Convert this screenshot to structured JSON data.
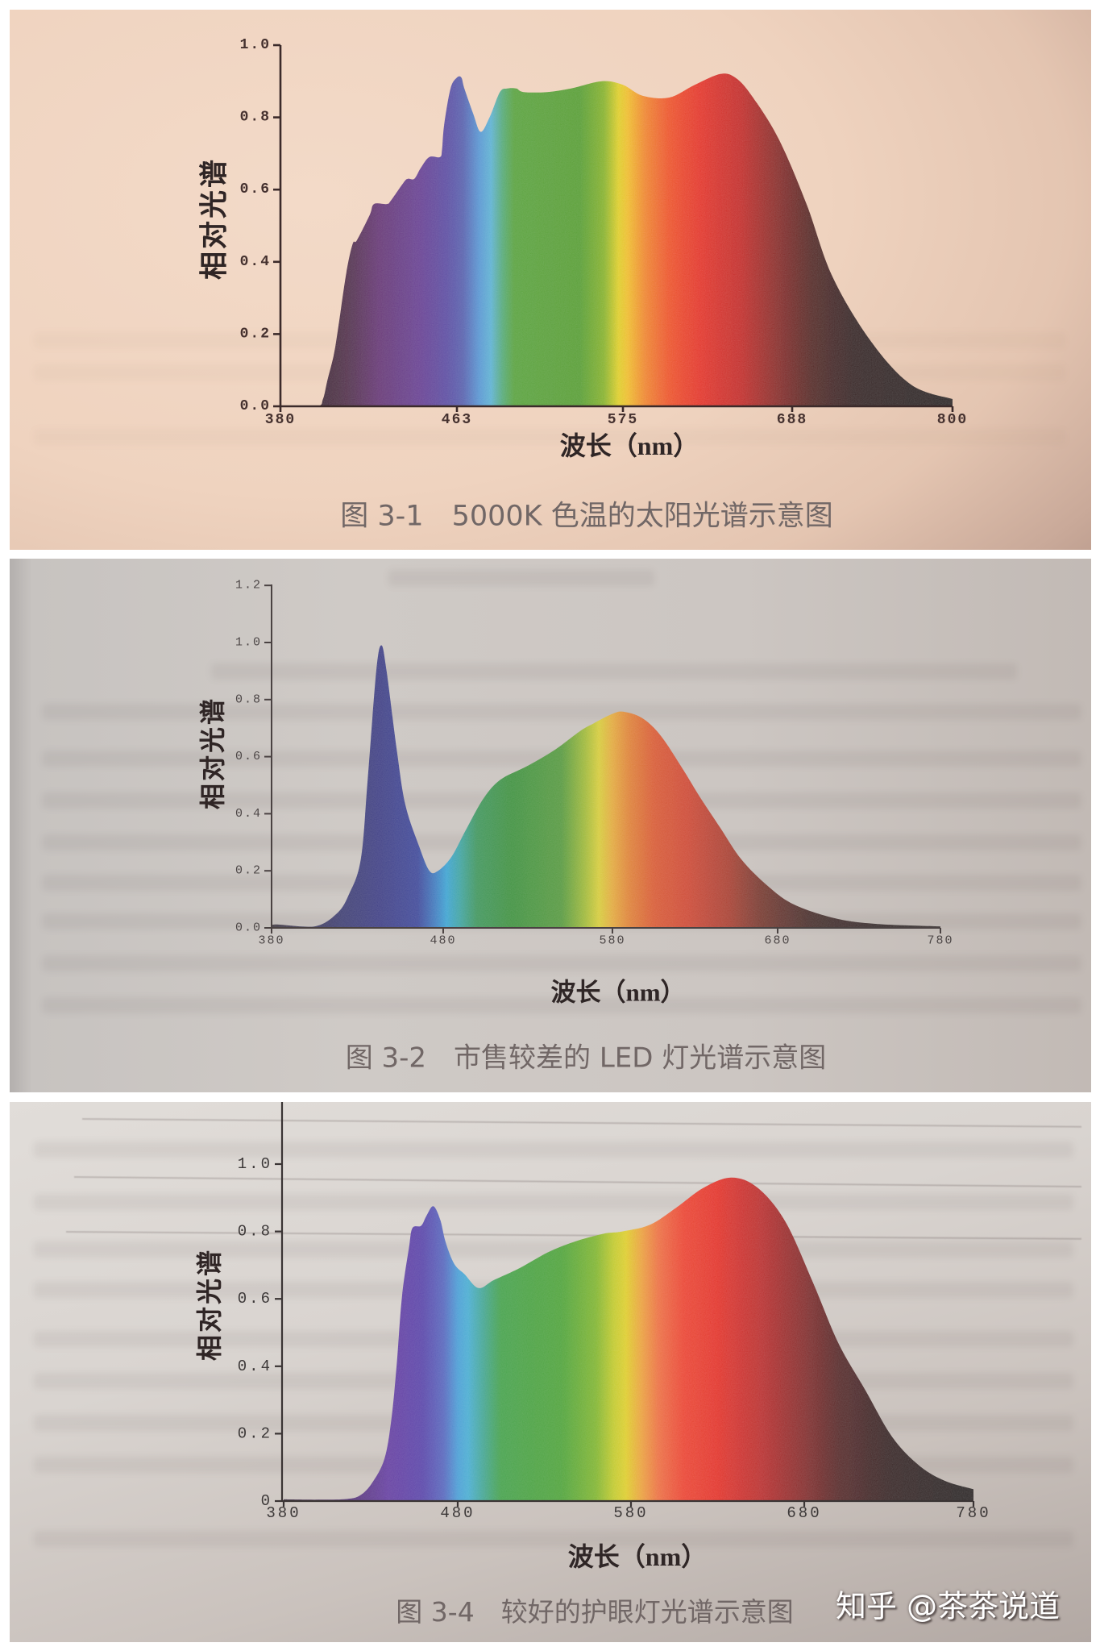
{
  "watermark": {
    "text": "知乎 @茶茶说道"
  },
  "chart_data": [
    {
      "type": "area",
      "title": "图 3-1　5000K 色温的太阳光谱示意图",
      "xlabel": "波长（nm）",
      "ylabel": "相对光谱",
      "xlim": [
        380,
        800
      ],
      "ylim": [
        0,
        1.0
      ],
      "x_tick_labels": [
        "380",
        "463",
        "575",
        "688",
        "800"
      ],
      "x_tick_values": [
        380,
        463,
        575,
        688,
        800
      ],
      "x_tick_positions": [
        0,
        0.2626,
        0.5096,
        0.7614,
        1
      ],
      "y_tick_labels": [
        "0.0",
        "0.2",
        "0.4",
        "0.6",
        "0.8",
        "1.0"
      ],
      "y_tick_values": [
        0,
        0.2,
        0.4,
        0.6,
        0.8,
        1.0
      ],
      "grid": false,
      "legend": null,
      "series": [
        {
          "x": [
            380,
            397,
            400,
            402,
            405,
            407,
            411,
            414,
            416,
            422,
            424,
            430,
            432,
            438,
            440,
            443,
            446,
            450,
            455,
            456,
            457,
            460,
            463,
            466,
            468,
            474,
            479,
            485,
            492,
            497,
            503,
            508,
            524,
            540,
            561,
            575,
            588,
            606,
            623,
            640,
            650,
            661,
            679,
            698,
            716,
            743,
            771,
            800
          ],
          "y": [
            0,
            0,
            0.02,
            0.07,
            0.14,
            0.21,
            0.37,
            0.45,
            0.46,
            0.53,
            0.56,
            0.56,
            0.57,
            0.62,
            0.63,
            0.63,
            0.66,
            0.69,
            0.69,
            0.71,
            0.78,
            0.88,
            0.91,
            0.91,
            0.88,
            0.81,
            0.76,
            0.8,
            0.87,
            0.88,
            0.88,
            0.87,
            0.87,
            0.88,
            0.9,
            0.89,
            0.86,
            0.855,
            0.89,
            0.92,
            0.91,
            0.86,
            0.74,
            0.56,
            0.36,
            0.18,
            0.06,
            0.02
          ]
        }
      ],
      "fill_gradient": [
        {
          "nm": 397,
          "color": "#3c1830"
        },
        {
          "nm": 411,
          "color": "#52244a"
        },
        {
          "nm": 426,
          "color": "#6a2e7a"
        },
        {
          "nm": 445,
          "color": "#6c3c98"
        },
        {
          "nm": 458,
          "color": "#5e4ca8"
        },
        {
          "nm": 467,
          "color": "#5a64b4"
        },
        {
          "nm": 478,
          "color": "#5a9cd8"
        },
        {
          "nm": 486,
          "color": "#60b8d8"
        },
        {
          "nm": 494,
          "color": "#58b07c"
        },
        {
          "nm": 502,
          "color": "#5ca838"
        },
        {
          "nm": 546,
          "color": "#5aa42a"
        },
        {
          "nm": 562,
          "color": "#8cb81c"
        },
        {
          "nm": 572,
          "color": "#e4d414"
        },
        {
          "nm": 578,
          "color": "#f4c41c"
        },
        {
          "nm": 590,
          "color": "#f48a20"
        },
        {
          "nm": 606,
          "color": "#f25418"
        },
        {
          "nm": 627,
          "color": "#e82a12"
        },
        {
          "nm": 654,
          "color": "#c81c12"
        },
        {
          "nm": 679,
          "color": "#8c1a12"
        },
        {
          "nm": 703,
          "color": "#541410"
        },
        {
          "nm": 731,
          "color": "#2e0c0c"
        },
        {
          "nm": 800,
          "color": "#1c0608"
        }
      ]
    },
    {
      "type": "area",
      "title": "图 3-2　市售较差的 LED 灯光谱示意图",
      "xlabel": "波长（nm）",
      "ylabel": "相对光谱",
      "xlim": [
        380,
        780
      ],
      "ylim": [
        0,
        1.2
      ],
      "x_tick_labels": [
        "380",
        "480",
        "580",
        "680",
        "780"
      ],
      "x_tick_values": [
        380,
        480,
        580,
        680,
        780
      ],
      "x_tick_positions": [
        0,
        0.2566,
        0.5096,
        0.7566,
        1
      ],
      "y_tick_labels": [
        "0.0",
        "0.2",
        "0.4",
        "0.6",
        "0.8",
        "1.0",
        "1.2"
      ],
      "y_tick_values": [
        0,
        0.2,
        0.4,
        0.6,
        0.8,
        1.0,
        1.2
      ],
      "grid": false,
      "legend": null,
      "series": [
        {
          "x": [
            380,
            382,
            405,
            418,
            425,
            432,
            436,
            441,
            444,
            447,
            453,
            458,
            466,
            472,
            477,
            485,
            494,
            504,
            514,
            530,
            546,
            561,
            569,
            580,
            587,
            598,
            609,
            622,
            633,
            645,
            658,
            674,
            690,
            715,
            740,
            780
          ],
          "y": [
            0,
            0.012,
            0.005,
            0.05,
            0.116,
            0.24,
            0.52,
            0.9,
            0.99,
            0.9,
            0.62,
            0.43,
            0.285,
            0.2,
            0.2,
            0.25,
            0.35,
            0.455,
            0.52,
            0.568,
            0.624,
            0.69,
            0.717,
            0.75,
            0.757,
            0.735,
            0.675,
            0.562,
            0.458,
            0.353,
            0.24,
            0.147,
            0.082,
            0.034,
            0.014,
            0.005
          ]
        }
      ],
      "fill_gradient": [
        {
          "nm": 380,
          "color": "#3e3040"
        },
        {
          "nm": 420,
          "color": "#3a3a78"
        },
        {
          "nm": 444,
          "color": "#3a3e8c"
        },
        {
          "nm": 465,
          "color": "#3b48a0"
        },
        {
          "nm": 476,
          "color": "#3a86c8"
        },
        {
          "nm": 482,
          "color": "#38aad8"
        },
        {
          "nm": 490,
          "color": "#3aaaa8"
        },
        {
          "nm": 500,
          "color": "#3c9c60"
        },
        {
          "nm": 520,
          "color": "#3c983e"
        },
        {
          "nm": 550,
          "color": "#5aa03a"
        },
        {
          "nm": 564,
          "color": "#a8c032"
        },
        {
          "nm": 572,
          "color": "#dcd234"
        },
        {
          "nm": 580,
          "color": "#e8b038"
        },
        {
          "nm": 590,
          "color": "#e4882e"
        },
        {
          "nm": 605,
          "color": "#de5e2a"
        },
        {
          "nm": 625,
          "color": "#d4482a"
        },
        {
          "nm": 650,
          "color": "#b03e28"
        },
        {
          "nm": 670,
          "color": "#7c3224"
        },
        {
          "nm": 700,
          "color": "#48221e"
        },
        {
          "nm": 740,
          "color": "#2e1a1c"
        },
        {
          "nm": 780,
          "color": "#2a1a1e"
        }
      ]
    },
    {
      "type": "area",
      "title": "图 3-4　较好的护眼灯光谱示意图",
      "xlabel": "波长（nm）",
      "ylabel": "相对光谱",
      "xlim": [
        380,
        780
      ],
      "ylim": [
        0,
        1.0
      ],
      "x_tick_labels": [
        "380",
        "480",
        "580",
        "680",
        "780"
      ],
      "x_tick_values": [
        380,
        480,
        580,
        680,
        780
      ],
      "x_tick_positions": [
        0,
        0.2523,
        0.5035,
        0.7547,
        1
      ],
      "y_tick_labels": [
        "0",
        "0.2",
        "0.4",
        "0.6",
        "0.8",
        "1.0"
      ],
      "y_tick_values": [
        0,
        0.2,
        0.4,
        0.6,
        0.8,
        1.0
      ],
      "grid": false,
      "legend": null,
      "series": [
        {
          "x": [
            380,
            400,
            416,
            424,
            431,
            438,
            442,
            445,
            448,
            452,
            454,
            459,
            462,
            466,
            470,
            473,
            478,
            484,
            492,
            501,
            516,
            532,
            547,
            564,
            575,
            591,
            606,
            622,
            638,
            653,
            669,
            685,
            700,
            716,
            732,
            748,
            763,
            780
          ],
          "y": [
            0.005,
            0.004,
            0.006,
            0.017,
            0.055,
            0.127,
            0.247,
            0.408,
            0.608,
            0.752,
            0.81,
            0.817,
            0.846,
            0.875,
            0.834,
            0.769,
            0.704,
            0.673,
            0.632,
            0.656,
            0.692,
            0.738,
            0.769,
            0.793,
            0.8,
            0.82,
            0.87,
            0.93,
            0.96,
            0.93,
            0.83,
            0.65,
            0.47,
            0.33,
            0.19,
            0.105,
            0.06,
            0.035
          ]
        }
      ],
      "fill_gradient": [
        {
          "nm": 380,
          "color": "#3a2040"
        },
        {
          "nm": 420,
          "color": "#5a2c80"
        },
        {
          "nm": 440,
          "color": "#6a3aa8"
        },
        {
          "nm": 460,
          "color": "#5c44b0"
        },
        {
          "nm": 472,
          "color": "#5a6cc4"
        },
        {
          "nm": 480,
          "color": "#4aa4dc"
        },
        {
          "nm": 486,
          "color": "#48b4d8"
        },
        {
          "nm": 495,
          "color": "#42ac98"
        },
        {
          "nm": 505,
          "color": "#44a84c"
        },
        {
          "nm": 540,
          "color": "#50aa34"
        },
        {
          "nm": 560,
          "color": "#88bc24"
        },
        {
          "nm": 570,
          "color": "#c8d01c"
        },
        {
          "nm": 577,
          "color": "#e4d41a"
        },
        {
          "nm": 586,
          "color": "#f0a838"
        },
        {
          "nm": 596,
          "color": "#f27440"
        },
        {
          "nm": 610,
          "color": "#f04428"
        },
        {
          "nm": 630,
          "color": "#e82818"
        },
        {
          "nm": 655,
          "color": "#c02020"
        },
        {
          "nm": 680,
          "color": "#8a1c1c"
        },
        {
          "nm": 700,
          "color": "#5a1414"
        },
        {
          "nm": 730,
          "color": "#300c0e"
        },
        {
          "nm": 780,
          "color": "#1a0608"
        }
      ]
    }
  ]
}
